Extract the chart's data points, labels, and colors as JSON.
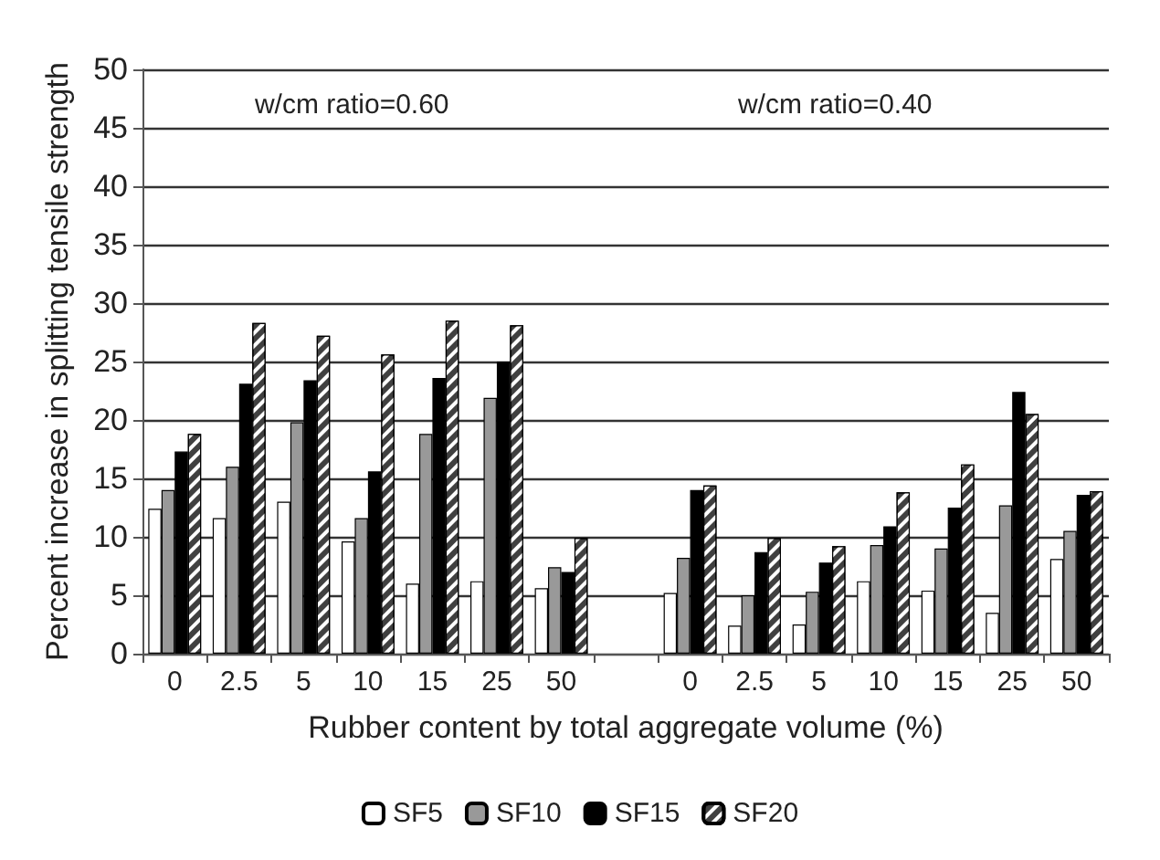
{
  "chart_data": {
    "type": "bar",
    "xlabel": "Rubber content by total aggregate volume (%)",
    "ylabel": "Percent increase in splitting tensile strength",
    "categories": [
      "0",
      "2.5",
      "5",
      "10",
      "15",
      "25",
      "50",
      null,
      "0",
      "2.5",
      "5",
      "10",
      "15",
      "25",
      "50"
    ],
    "series": [
      {
        "name": "SF5",
        "color": "#ffffff",
        "values": [
          12.4,
          11.6,
          13.0,
          9.6,
          6.0,
          6.2,
          5.6,
          null,
          5.2,
          2.4,
          2.5,
          6.2,
          5.4,
          3.5,
          8.1
        ]
      },
      {
        "name": "SF10",
        "color": "#999999",
        "values": [
          14.0,
          16.0,
          19.8,
          11.6,
          18.8,
          21.9,
          7.4,
          null,
          8.2,
          5.0,
          5.3,
          9.3,
          9.0,
          12.7,
          10.5
        ]
      },
      {
        "name": "SF15",
        "color": "#000000",
        "values": [
          17.3,
          23.1,
          23.4,
          15.6,
          23.6,
          25.0,
          7.0,
          null,
          14.0,
          8.7,
          7.8,
          10.9,
          12.5,
          22.4,
          13.6
        ]
      },
      {
        "name": "SF20",
        "color": "#404040",
        "values": [
          18.8,
          28.3,
          27.2,
          25.6,
          28.5,
          28.1,
          9.9,
          null,
          14.4,
          9.9,
          9.2,
          13.8,
          16.2,
          20.5,
          13.9
        ]
      }
    ],
    "ylim": [
      0,
      50
    ],
    "yticks": [
      0,
      5,
      10,
      15,
      20,
      25,
      30,
      35,
      40,
      45,
      50
    ],
    "grid": "y",
    "legend": "bottom",
    "annotations": [
      "w/cm ratio=0.60",
      "w/cm ratio=0.40"
    ]
  }
}
